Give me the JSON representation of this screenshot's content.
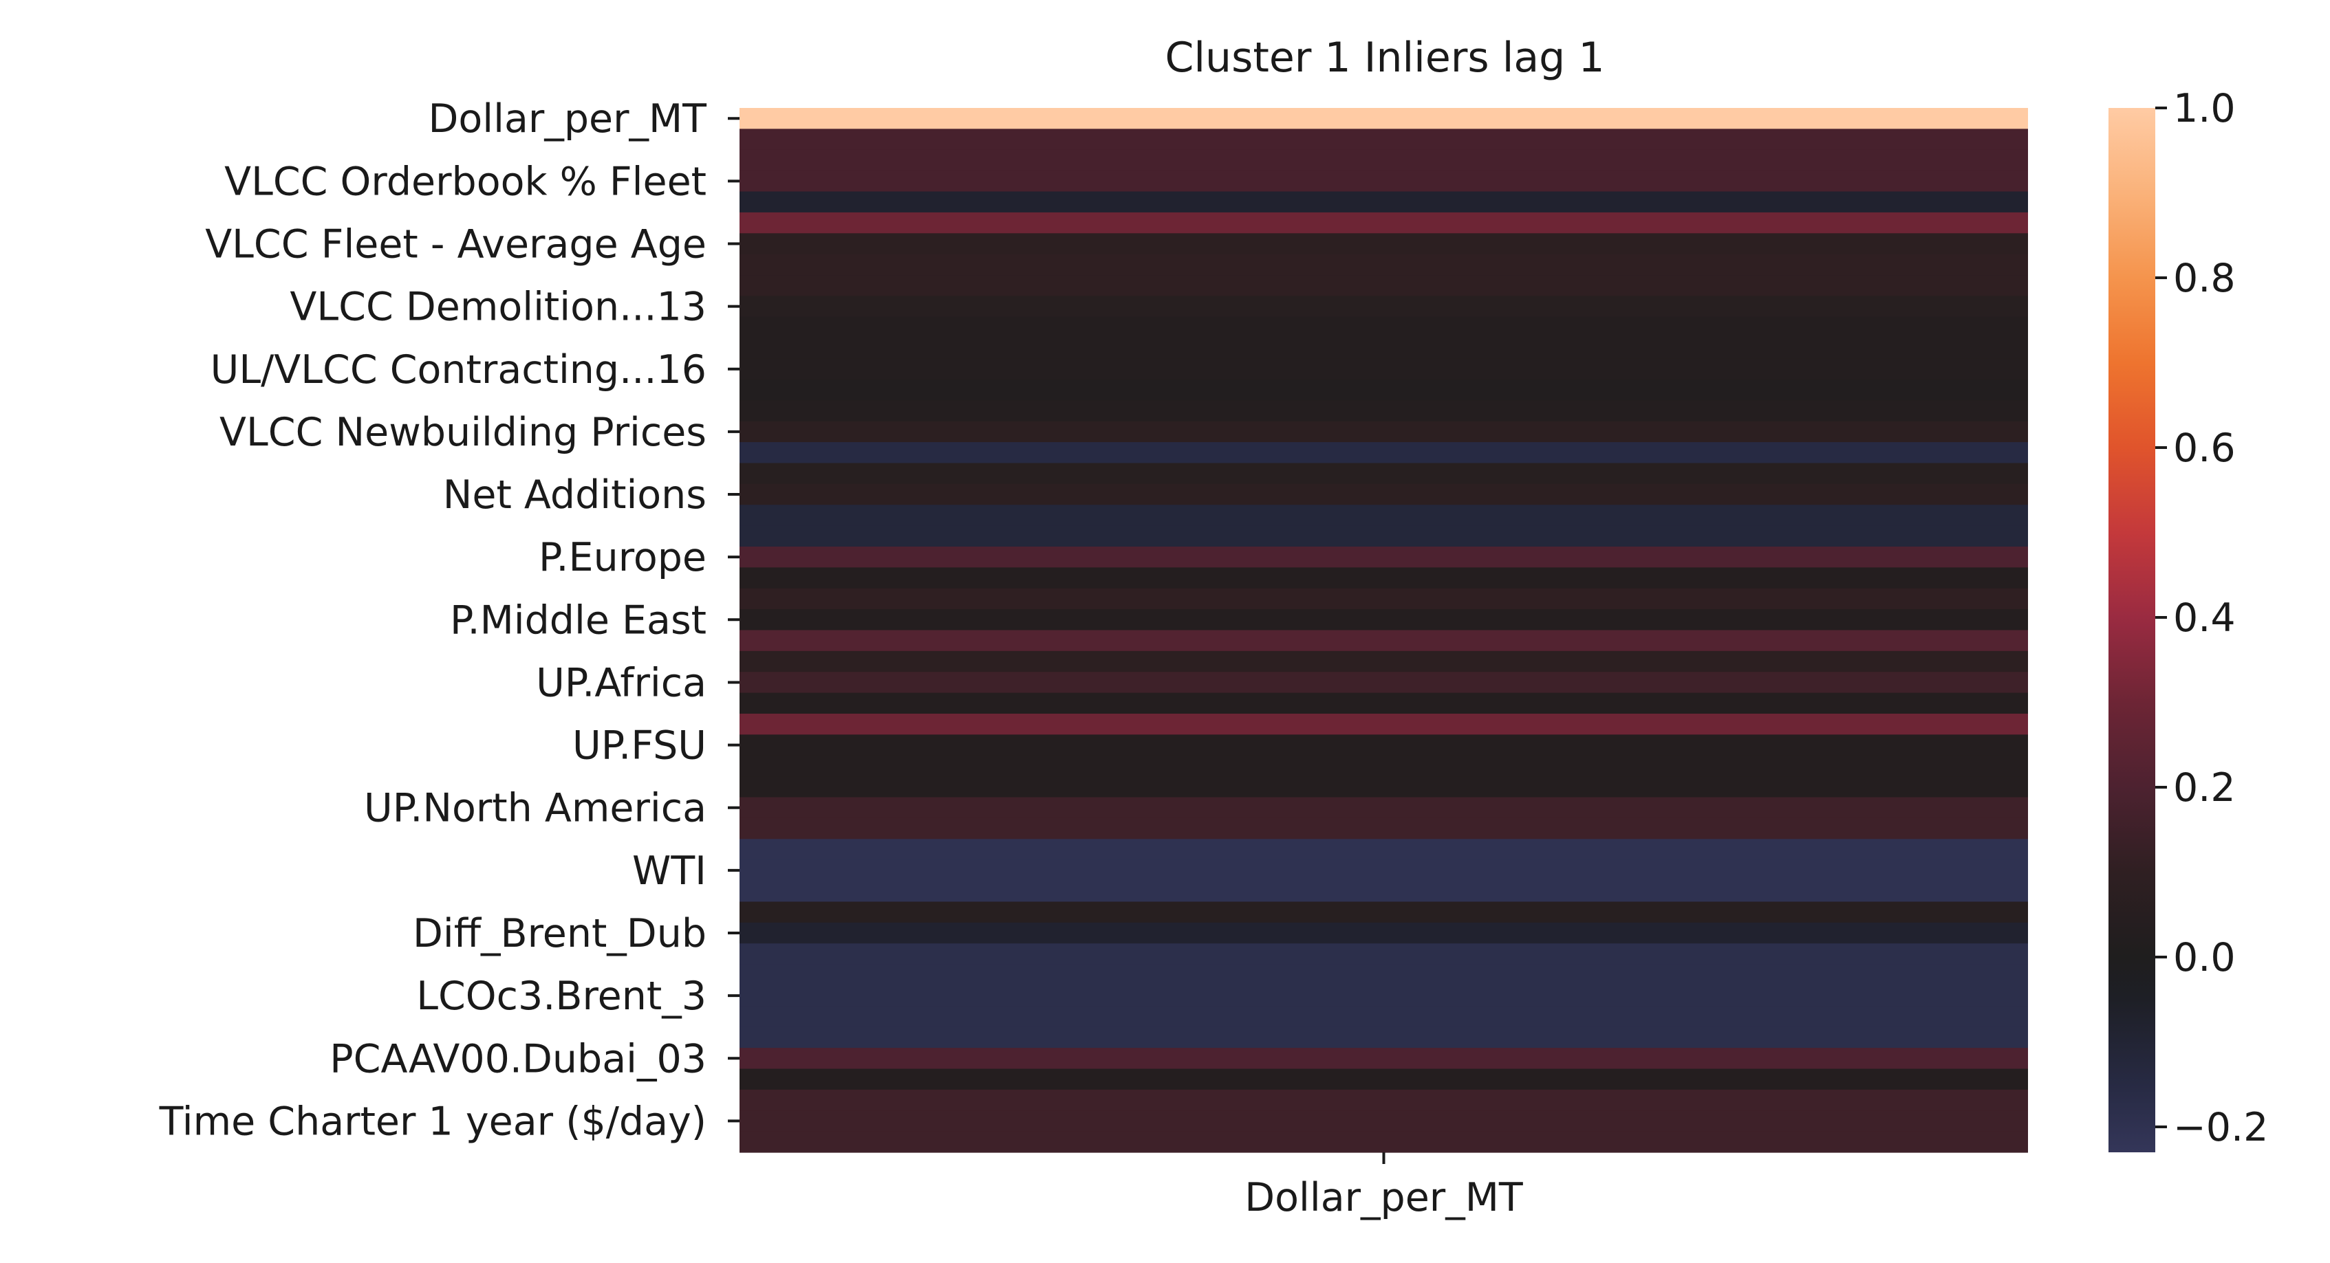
{
  "chart_data": {
    "type": "heatmap",
    "title": "Cluster 1 Inliers lag 1",
    "xlabel": "",
    "ylabel": "",
    "columns": [
      "Dollar_per_MT"
    ],
    "y_tick_labels": [
      "Dollar_per_MT",
      "VLCC Orderbook % Fleet",
      "VLCC Fleet - Average Age",
      "VLCC Demolition...13",
      "UL/VLCC Contracting...16",
      "VLCC Newbuilding Prices",
      "Net Additions",
      "P.Europe",
      "P.Middle East",
      "UP.Africa",
      "UP.FSU",
      "UP.North America",
      "WTI",
      "Diff_Brent_Dub",
      "LCOc3.Brent_3",
      "PCAAV00.Dubai_03",
      "Time Charter 1 year ($/day)"
    ],
    "values": [
      1.0,
      0.18,
      0.18,
      0.18,
      -0.08,
      0.3,
      0.08,
      0.1,
      0.1,
      0.05,
      0.03,
      0.03,
      0.03,
      0.02,
      0.03,
      0.08,
      -0.15,
      0.05,
      0.08,
      -0.12,
      -0.12,
      0.2,
      0.03,
      0.1,
      0.03,
      0.22,
      0.08,
      0.15,
      0.03,
      0.3,
      0.03,
      0.03,
      0.03,
      0.15,
      0.15,
      -0.2,
      -0.2,
      -0.2,
      0.05,
      -0.08,
      -0.18,
      -0.18,
      -0.18,
      -0.18,
      -0.18,
      0.2,
      0.03,
      0.15,
      0.15,
      0.15
    ],
    "colorbar": {
      "min": -0.23,
      "max": 1.0,
      "ticks": [
        1.0,
        0.8,
        0.6,
        0.4,
        0.2,
        0.0,
        -0.2
      ],
      "tick_labels": [
        "1.0",
        "0.8",
        "0.6",
        "0.4",
        "0.2",
        "0.0",
        "−0.2"
      ],
      "colormap": "icefire",
      "center": 0.0,
      "stops": [
        {
          "v": -0.23,
          "c": "#343659"
        },
        {
          "v": -0.15,
          "c": "#272a43"
        },
        {
          "v": -0.05,
          "c": "#1e1f26"
        },
        {
          "v": 0.0,
          "c": "#1f1e1e"
        },
        {
          "v": 0.1,
          "c": "#2f1f22"
        },
        {
          "v": 0.2,
          "c": "#4d2230"
        },
        {
          "v": 0.3,
          "c": "#6d2535"
        },
        {
          "v": 0.4,
          "c": "#9a2b41"
        },
        {
          "v": 0.5,
          "c": "#c4393b"
        },
        {
          "v": 0.6,
          "c": "#e0542c"
        },
        {
          "v": 0.7,
          "c": "#ee742f"
        },
        {
          "v": 0.8,
          "c": "#f5944d"
        },
        {
          "v": 0.9,
          "c": "#fab27a"
        },
        {
          "v": 1.0,
          "c": "#ffcba4"
        }
      ]
    },
    "grid": false,
    "legend": "colorbar-right"
  }
}
